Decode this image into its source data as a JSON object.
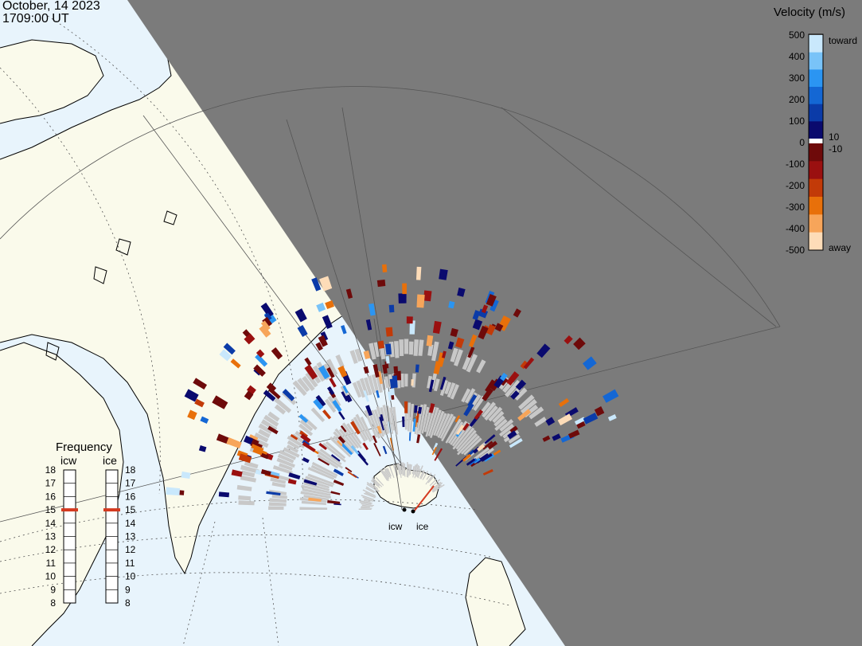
{
  "header": {
    "date": "October, 14 2023",
    "time": "1709:00 UT"
  },
  "colors": {
    "ocean": "#e8f4fc",
    "land": "#fafaeb",
    "night": "#7b7b7b",
    "ground_scatter": "#c8c8c8",
    "coast": "#000000",
    "grid": "#555555",
    "background": "#ffffff"
  },
  "velocity_scale": {
    "title": "Velocity (m/s)",
    "ticks": [
      "500",
      "400",
      "300",
      "200",
      "100",
      "0",
      "-100",
      "-200",
      "-300",
      "-400",
      "-500"
    ],
    "toward_label": "toward",
    "away_label": "away",
    "zero_upper": "10",
    "zero_lower": "-10",
    "toward_colors": [
      "#0a0a6e",
      "#0b3ba8",
      "#1467d4",
      "#2b95f2",
      "#79c3f8",
      "#c9e8fc"
    ],
    "away_colors": [
      "#6e0a0a",
      "#9a1010",
      "#c23a08",
      "#e8700a",
      "#f7a55a",
      "#fddcb8"
    ]
  },
  "frequency_panel": {
    "title": "Frequency",
    "radars": [
      {
        "label": "icw",
        "frequency_mhz": 15
      },
      {
        "label": "ice",
        "frequency_mhz": 15
      }
    ],
    "ticks": [
      "18",
      "17",
      "16",
      "15",
      "14",
      "13",
      "12",
      "11",
      "10",
      "9",
      "8"
    ],
    "range": [
      8,
      18
    ],
    "marker_color": "#d43a20"
  },
  "radar_sites": [
    {
      "label": "icw"
    },
    {
      "label": "ice"
    }
  ]
}
